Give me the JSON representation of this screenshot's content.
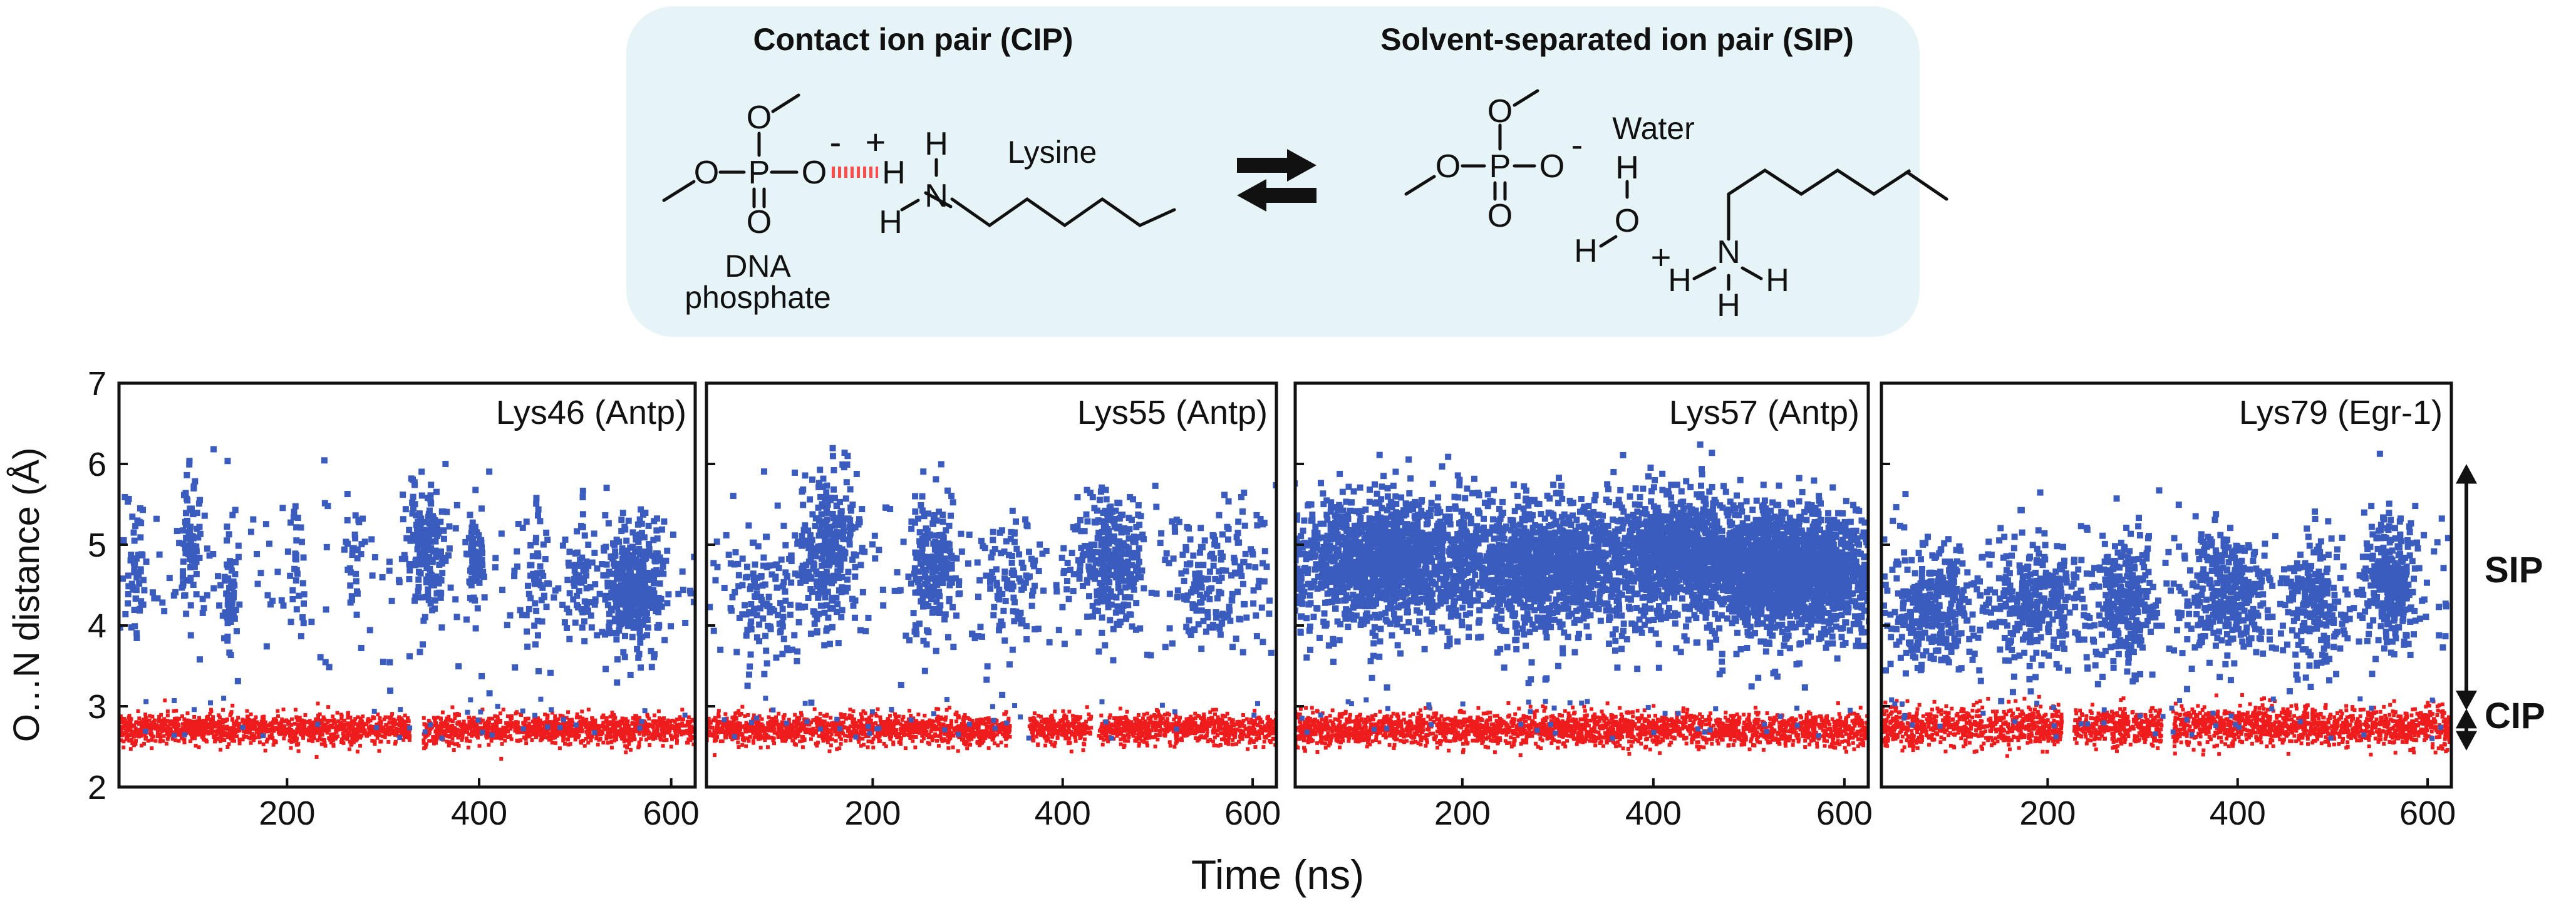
{
  "scheme": {
    "cip_title": "Contact ion pair (CIP)",
    "sip_title": "Solvent-separated ion pair (SIP)",
    "lysine_label": "Lysine",
    "dna_label_line1": "DNA",
    "dna_label_line2": "phosphate",
    "water_label": "Water",
    "background_color": "#e6f4f7",
    "hbond_color": "#ff4d4d",
    "atoms": {
      "O": "O",
      "P": "P",
      "N": "N",
      "H": "H",
      "minus": "-",
      "plus": "+"
    }
  },
  "chart_data": {
    "type": "scatter",
    "ylabel": "O…N distance (Å)",
    "xlabel": "Time (ns)",
    "ylim": [
      2,
      7
    ],
    "xlim": [
      25,
      625
    ],
    "yticks": [
      2,
      3,
      4,
      5,
      6,
      7
    ],
    "xticks": [
      200,
      400,
      600
    ],
    "grid": false,
    "series_colors": {
      "SIP": "#3b5cbf",
      "CIP": "#ee1c1c"
    },
    "bands": {
      "SIP": {
        "label": "SIP",
        "range": [
          3.0,
          6.0
        ]
      },
      "CIP": {
        "label": "CIP",
        "range": [
          2.2,
          3.0
        ]
      }
    },
    "panels": [
      {
        "title": "Lys46 (Antp)",
        "cip": {
          "mean": 2.72,
          "spread": 0.09,
          "gaps": [
            [
              328,
              342
            ]
          ]
        },
        "sip": {
          "base": 4.6,
          "spread": 0.55,
          "clusters": [
            {
              "t": 45,
              "w": 10,
              "y": 4.8,
              "n": 40
            },
            {
              "t": 100,
              "w": 10,
              "y": 5.1,
              "n": 80
            },
            {
              "t": 140,
              "w": 8,
              "y": 4.3,
              "n": 60
            },
            {
              "t": 210,
              "w": 8,
              "y": 4.9,
              "n": 25
            },
            {
              "t": 270,
              "w": 8,
              "y": 4.9,
              "n": 25
            },
            {
              "t": 345,
              "w": 22,
              "y": 5.0,
              "n": 180
            },
            {
              "t": 395,
              "w": 10,
              "y": 4.8,
              "n": 70
            },
            {
              "t": 460,
              "w": 12,
              "y": 4.6,
              "n": 50
            },
            {
              "t": 505,
              "w": 15,
              "y": 4.5,
              "n": 60
            },
            {
              "t": 560,
              "w": 28,
              "y": 4.45,
              "n": 420
            }
          ]
        }
      },
      {
        "title": "Lys55 (Antp)",
        "cip": {
          "mean": 2.72,
          "spread": 0.09,
          "gaps": [
            [
              345,
              365
            ],
            [
              430,
              438
            ]
          ]
        },
        "sip": {
          "base": 4.6,
          "spread": 0.6,
          "clusters": [
            {
              "t": 90,
              "w": 60,
              "y": 4.4,
              "n": 130
            },
            {
              "t": 155,
              "w": 30,
              "y": 4.95,
              "n": 260
            },
            {
              "t": 265,
              "w": 25,
              "y": 4.7,
              "n": 180
            },
            {
              "t": 340,
              "w": 40,
              "y": 4.5,
              "n": 80
            },
            {
              "t": 450,
              "w": 35,
              "y": 4.8,
              "n": 300
            },
            {
              "t": 560,
              "w": 60,
              "y": 4.6,
              "n": 160
            }
          ]
        }
      },
      {
        "title": "Lys57 (Antp)",
        "cip": {
          "mean": 2.72,
          "spread": 0.1,
          "gaps": []
        },
        "sip": {
          "base": 4.7,
          "spread": 0.5,
          "clusters": [
            {
              "t": 120,
              "w": 100,
              "y": 4.85,
              "n": 1100
            },
            {
              "t": 290,
              "w": 90,
              "y": 4.75,
              "n": 1000
            },
            {
              "t": 430,
              "w": 60,
              "y": 4.9,
              "n": 700
            },
            {
              "t": 540,
              "w": 90,
              "y": 4.65,
              "n": 1600
            }
          ]
        }
      },
      {
        "title": "Lys79 (Egr-1)",
        "cip": {
          "mean": 2.75,
          "spread": 0.12,
          "gaps": [
            [
              215,
              228
            ],
            [
              320,
              332
            ]
          ]
        },
        "sip": {
          "base": 4.35,
          "spread": 0.55,
          "clusters": [
            {
              "t": 80,
              "w": 50,
              "y": 4.25,
              "n": 320
            },
            {
              "t": 190,
              "w": 50,
              "y": 4.35,
              "n": 300
            },
            {
              "t": 280,
              "w": 30,
              "y": 4.25,
              "n": 260
            },
            {
              "t": 390,
              "w": 45,
              "y": 4.4,
              "n": 330
            },
            {
              "t": 480,
              "w": 30,
              "y": 4.2,
              "n": 200
            },
            {
              "t": 560,
              "w": 30,
              "y": 4.5,
              "n": 300
            }
          ]
        }
      }
    ]
  }
}
